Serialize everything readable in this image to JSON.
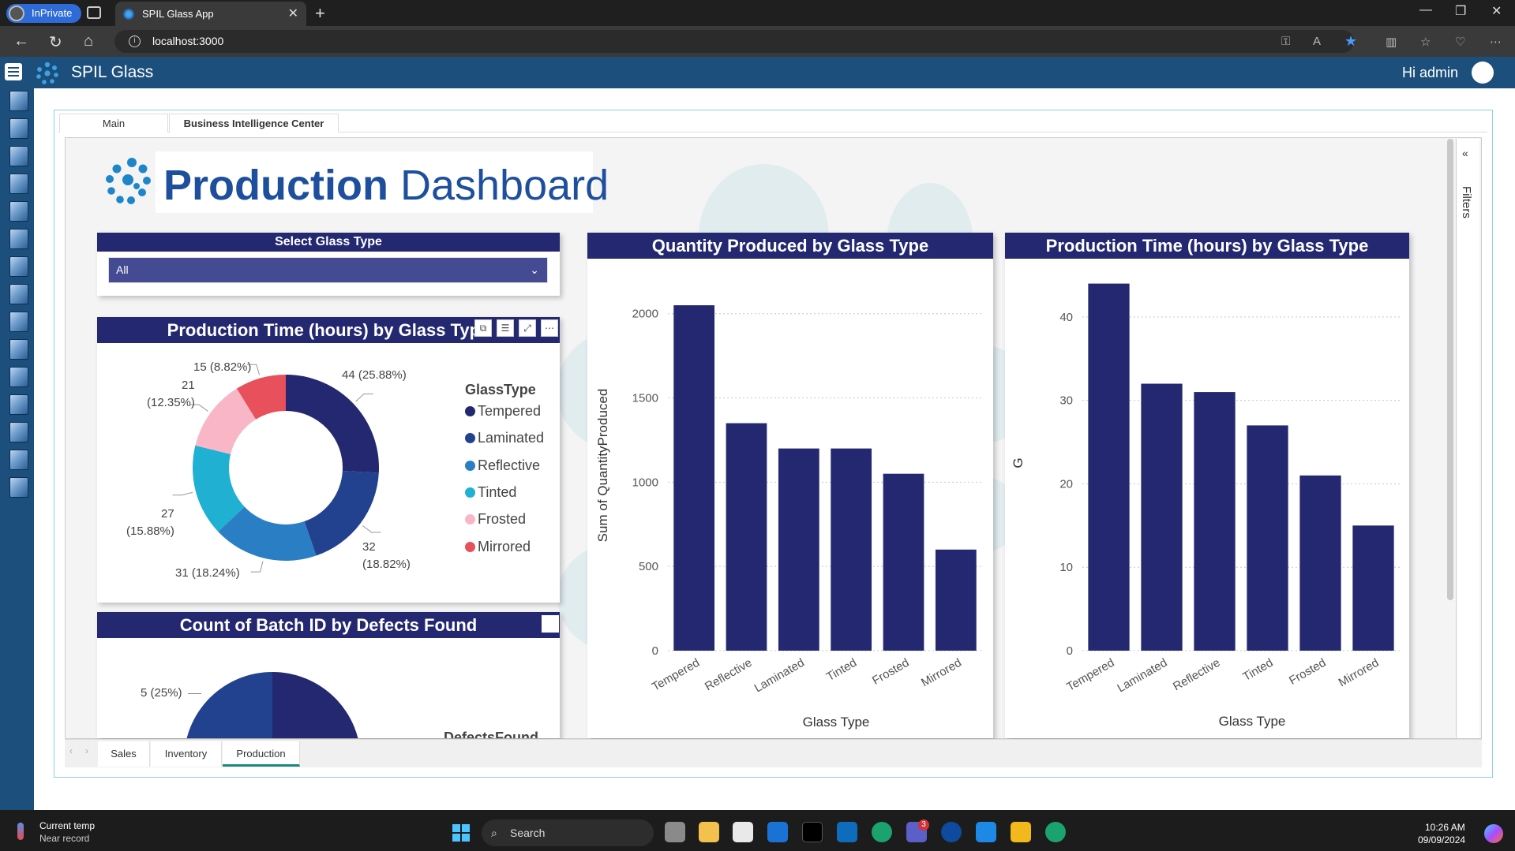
{
  "browser": {
    "inprivate_label": "InPrivate",
    "tab_title": "SPIL Glass App",
    "address": "localhost:3000"
  },
  "app": {
    "title": "SPIL Glass",
    "greeting": "Hi admin"
  },
  "app_tabs": [
    "Main",
    "Business Intelligence Center"
  ],
  "report": {
    "title_bold": "Production",
    "title_rest": "Dashboard",
    "slicer": {
      "header": "Select Glass Type",
      "value": "All"
    },
    "donut": {
      "title": "Production Time (hours) by Glass Type",
      "legend_title": "GlassType",
      "labels": [
        "44 (25.88%)",
        "32",
        "(18.82%)",
        "31 (18.24%)",
        "27",
        "(15.88%)",
        "21",
        "(12.35%)",
        "15 (8.82%)"
      ]
    },
    "defects": {
      "title": "Count of Batch ID by Defects Found",
      "label": "5 (25%)",
      "legend_title": "DefectsFound"
    },
    "filters_label": "Filters",
    "page_tabs": [
      "Sales",
      "Inventory",
      "Production"
    ]
  },
  "chart_data": [
    {
      "type": "pie",
      "title": "Production Time (hours) by Glass Type",
      "legend_title": "GlassType",
      "categories": [
        "Tempered",
        "Laminated",
        "Reflective",
        "Tinted",
        "Frosted",
        "Mirrored"
      ],
      "values": [
        44,
        32,
        31,
        27,
        21,
        15
      ],
      "percents": [
        25.88,
        18.82,
        18.24,
        15.88,
        12.35,
        8.82
      ],
      "colors": [
        "#232870",
        "#22418f",
        "#2a7fc4",
        "#1fb0d2",
        "#f9b6c7",
        "#e8505b"
      ],
      "donut": true
    },
    {
      "type": "bar",
      "title": "Quantity Produced by Glass Type",
      "categories": [
        "Tempered",
        "Reflective",
        "Laminated",
        "Tinted",
        "Frosted",
        "Mirrored"
      ],
      "values": [
        2050,
        1350,
        1200,
        1200,
        1050,
        600
      ],
      "xlabel": "Glass Type",
      "ylabel": "Sum of QuantityProduced",
      "ylim": [
        0,
        2200
      ],
      "yticks": [
        0,
        500,
        1000,
        1500,
        2000
      ],
      "color": "#232870",
      "grid": true
    },
    {
      "type": "bar",
      "title": "Production Time (hours) by Glass Type",
      "categories": [
        "Tempered",
        "Laminated",
        "Reflective",
        "Tinted",
        "Frosted",
        "Mirrored"
      ],
      "values": [
        44,
        32,
        31,
        27,
        21,
        15
      ],
      "xlabel": "Glass Type",
      "ylabel": "G",
      "ylim": [
        0,
        45
      ],
      "yticks": [
        0,
        10,
        20,
        30,
        40
      ],
      "color": "#232870",
      "grid": true
    }
  ],
  "taskbar": {
    "weather_title": "Current temp",
    "weather_sub": "Near record",
    "search_label": "Search",
    "time": "10:26 AM",
    "date": "09/09/2024",
    "teams_badge": "3"
  }
}
